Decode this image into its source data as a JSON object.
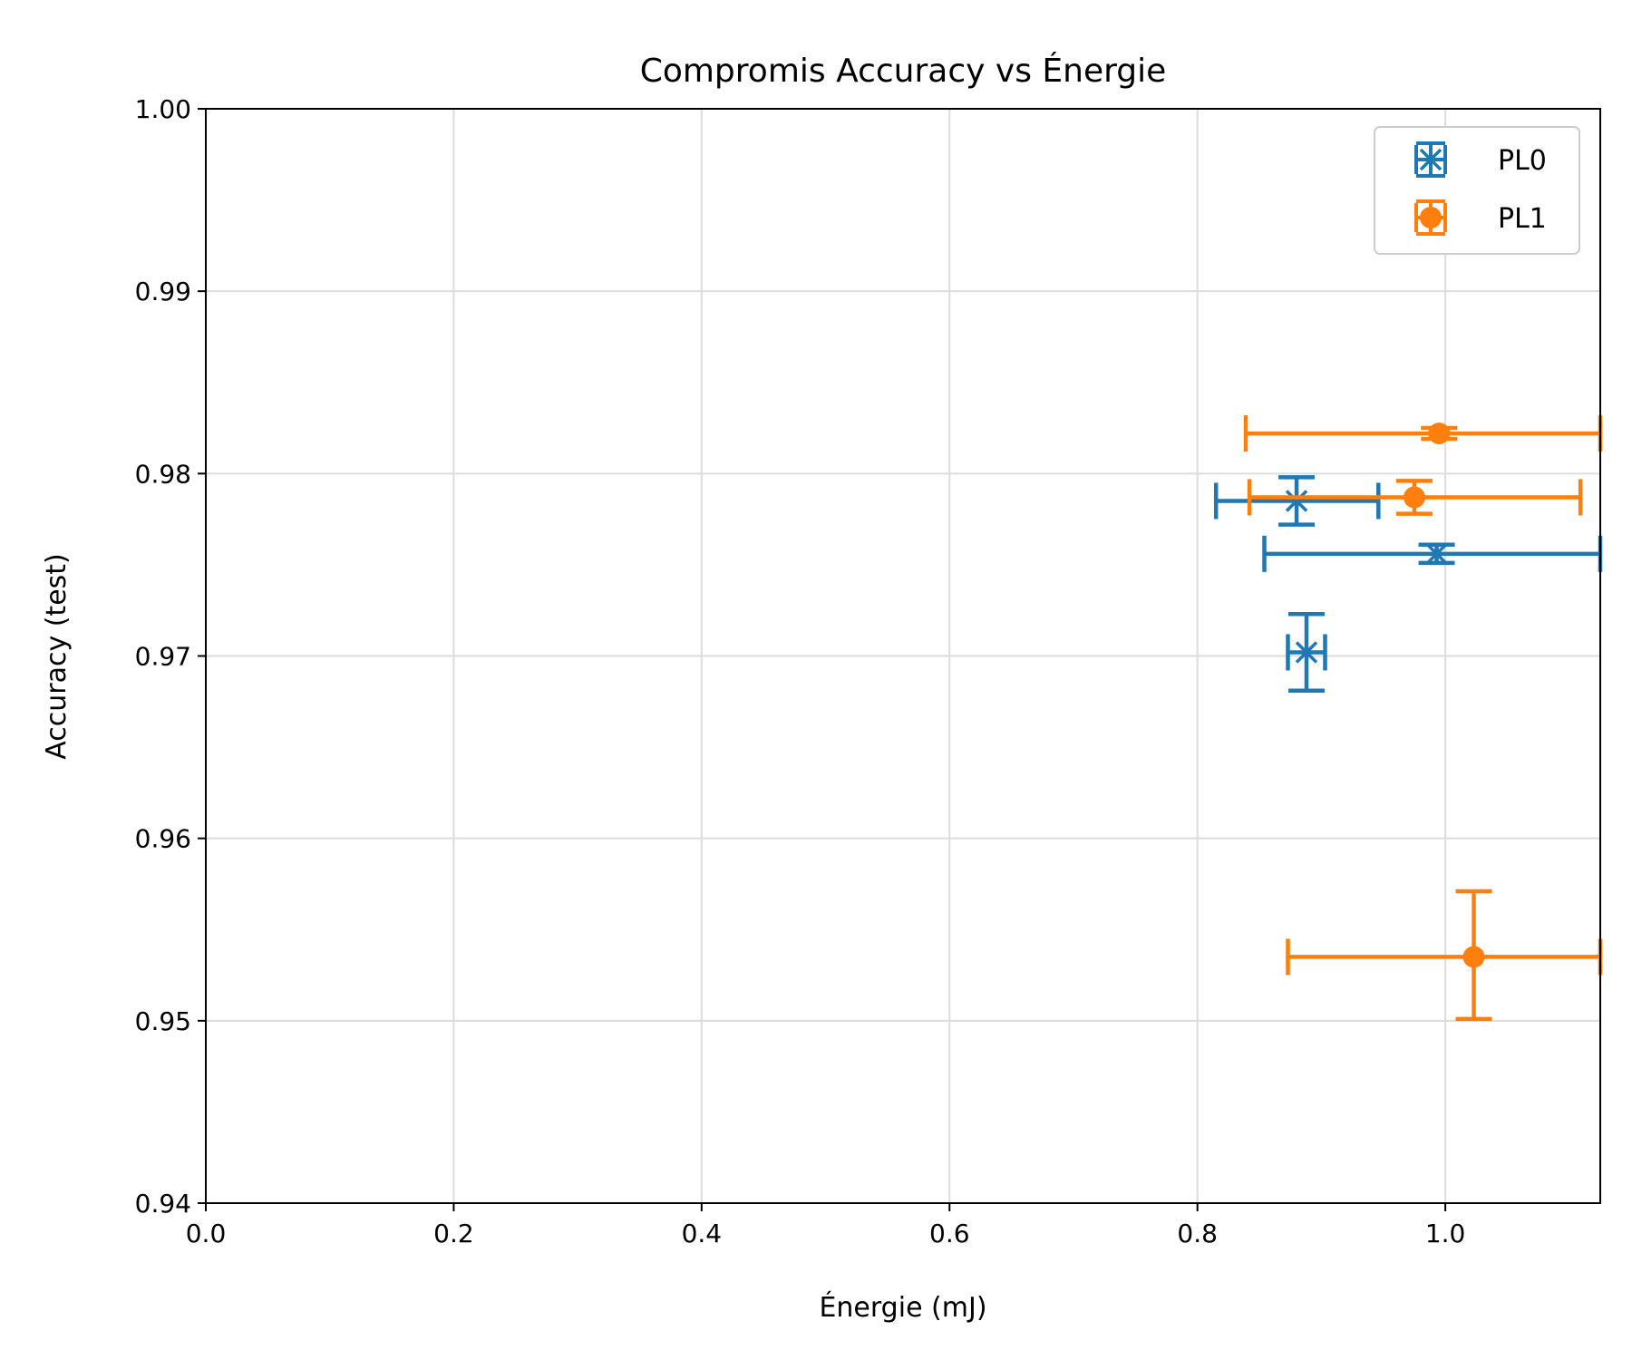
{
  "chart_data": {
    "type": "scatter",
    "title": "Compromis Accuracy vs Énergie",
    "xlabel": "Énergie (mJ)",
    "ylabel": "Accuracy (test)",
    "xlim": [
      0.0,
      1.125
    ],
    "ylim": [
      0.94,
      1.0
    ],
    "grid": true,
    "legend_position": "top-right",
    "x_ticks": [
      "0.0",
      "0.2",
      "0.4",
      "0.6",
      "0.8",
      "1.0"
    ],
    "y_ticks": [
      "0.94",
      "0.95",
      "0.96",
      "0.97",
      "0.98",
      "0.99",
      "1.00"
    ],
    "series": [
      {
        "name": "PL0",
        "color": "#1f77b4",
        "marker": "x",
        "points": [
          {
            "x": 0.88,
            "y": 0.9785,
            "x_lo": 0.815,
            "x_hi": 0.946,
            "y_lo": 0.9772,
            "y_hi": 0.9798
          },
          {
            "x": 0.993,
            "y": 0.9756,
            "x_lo": 0.854,
            "x_hi": 1.125,
            "y_lo": 0.9751,
            "y_hi": 0.9761
          },
          {
            "x": 0.888,
            "y": 0.9702,
            "x_lo": 0.873,
            "x_hi": 0.903,
            "y_lo": 0.9681,
            "y_hi": 0.9723
          }
        ]
      },
      {
        "name": "PL1",
        "color": "#ff7f0e",
        "marker": "o",
        "points": [
          {
            "x": 0.995,
            "y": 0.9822,
            "x_lo": 0.839,
            "x_hi": 1.125,
            "y_lo": 0.9819,
            "y_hi": 0.9825
          },
          {
            "x": 0.975,
            "y": 0.9787,
            "x_lo": 0.842,
            "x_hi": 1.109,
            "y_lo": 0.9778,
            "y_hi": 0.9796
          },
          {
            "x": 1.023,
            "y": 0.9535,
            "x_lo": 0.873,
            "x_hi": 1.125,
            "y_lo": 0.9501,
            "y_hi": 0.9571
          }
        ]
      }
    ]
  }
}
